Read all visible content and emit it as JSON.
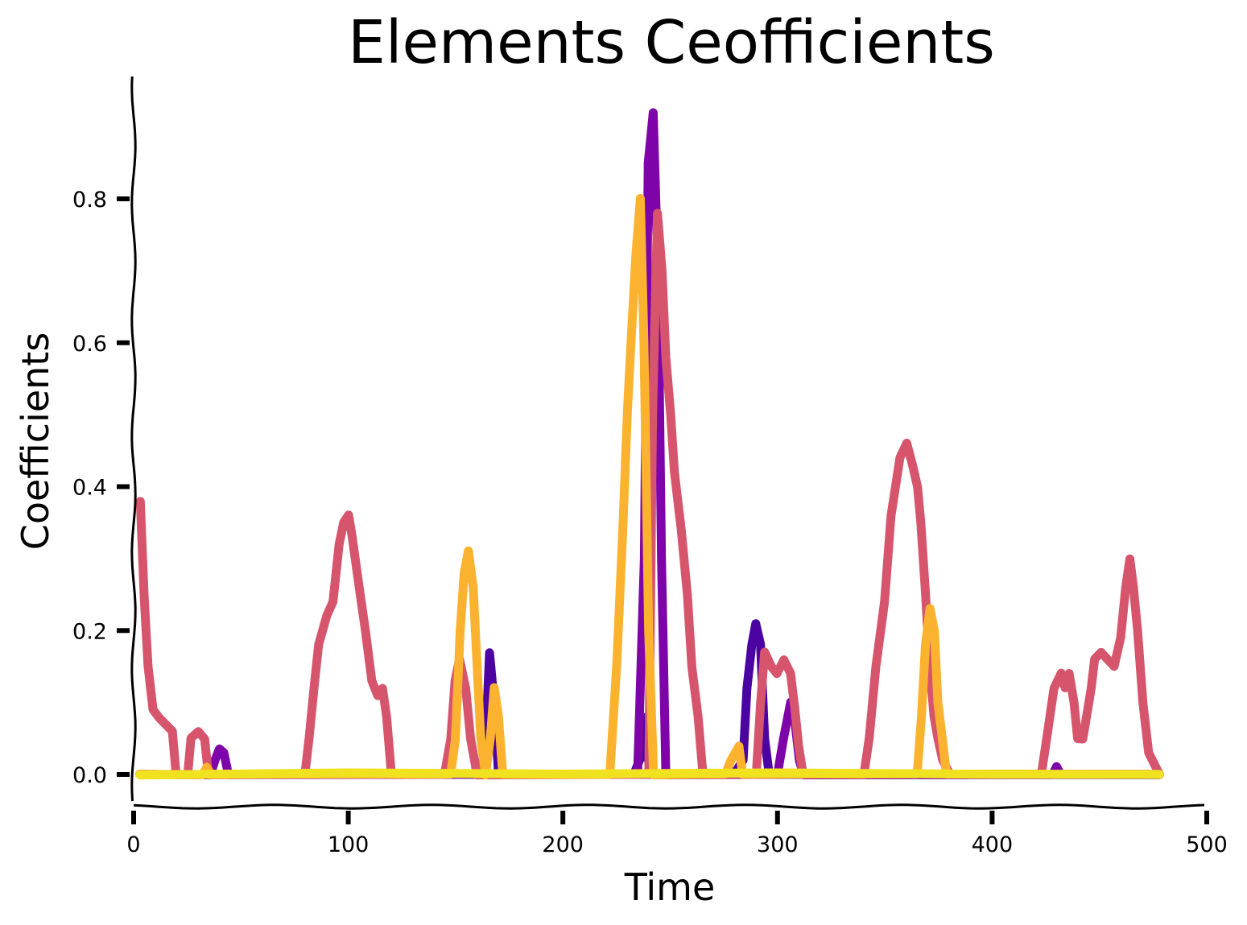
{
  "chart_data": {
    "type": "line",
    "title": "Elements Ceofficients",
    "xlabel": "Time",
    "ylabel": "Coefficients",
    "xlim": [
      0,
      500
    ],
    "ylim": [
      -0.05,
      0.96
    ],
    "xticks": [
      0,
      100,
      200,
      300,
      400,
      500
    ],
    "xtick_labels": [
      "0",
      "100",
      "200",
      "300",
      "400",
      "500"
    ],
    "yticks": [
      0.0,
      0.2,
      0.4,
      0.6,
      0.8
    ],
    "ytick_labels": [
      "0.0",
      "0.2",
      "0.4",
      "0.6",
      "0.8"
    ],
    "grid": false,
    "legend": "none",
    "style": "xkcd",
    "series": [
      {
        "color": "#4b03a1",
        "points": [
          [
            3,
            0
          ],
          [
            280,
            0
          ],
          [
            284,
            0.02
          ],
          [
            286,
            0.12
          ],
          [
            288,
            0.18
          ],
          [
            290,
            0.21
          ],
          [
            292,
            0.18
          ],
          [
            294,
            0.05
          ],
          [
            296,
            0
          ],
          [
            233,
            0
          ],
          [
            236,
            0.02
          ],
          [
            238,
            0.08
          ],
          [
            240,
            0.02
          ],
          [
            242,
            0
          ],
          [
            162,
            0
          ],
          [
            164,
            0.05
          ],
          [
            166,
            0.17
          ],
          [
            168,
            0.1
          ],
          [
            170,
            0
          ],
          [
            478,
            0
          ]
        ]
      },
      {
        "color": "#7e03a8",
        "points": [
          [
            3,
            0
          ],
          [
            36,
            0
          ],
          [
            38,
            0.02
          ],
          [
            40,
            0.035
          ],
          [
            42,
            0.03
          ],
          [
            44,
            0
          ],
          [
            235,
            0
          ],
          [
            238,
            0.3
          ],
          [
            240,
            0.85
          ],
          [
            242,
            0.92
          ],
          [
            244,
            0.7
          ],
          [
            246,
            0.3
          ],
          [
            248,
            0
          ],
          [
            300,
            0
          ],
          [
            303,
            0.05
          ],
          [
            306,
            0.1
          ],
          [
            308,
            0.08
          ],
          [
            310,
            0.02
          ],
          [
            312,
            0
          ],
          [
            428,
            0
          ],
          [
            430,
            0.01
          ],
          [
            432,
            0
          ],
          [
            478,
            0
          ]
        ]
      },
      {
        "color": "#d6556d",
        "points": [
          [
            3,
            0.38
          ],
          [
            5,
            0.25
          ],
          [
            7,
            0.15
          ],
          [
            9,
            0.09
          ],
          [
            12,
            0.08
          ],
          [
            15,
            0.07
          ],
          [
            18,
            0.06
          ],
          [
            20,
            0
          ],
          [
            25,
            0
          ],
          [
            27,
            0.05
          ],
          [
            30,
            0.06
          ],
          [
            33,
            0.05
          ],
          [
            35,
            0
          ],
          [
            80,
            0
          ],
          [
            82,
            0.05
          ],
          [
            84,
            0.12
          ],
          [
            86,
            0.18
          ],
          [
            90,
            0.22
          ],
          [
            93,
            0.24
          ],
          [
            96,
            0.32
          ],
          [
            98,
            0.35
          ],
          [
            100,
            0.36
          ],
          [
            102,
            0.33
          ],
          [
            105,
            0.26
          ],
          [
            108,
            0.2
          ],
          [
            111,
            0.13
          ],
          [
            114,
            0.11
          ],
          [
            116,
            0.12
          ],
          [
            118,
            0.08
          ],
          [
            120,
            0
          ],
          [
            145,
            0
          ],
          [
            148,
            0.05
          ],
          [
            150,
            0.13
          ],
          [
            152,
            0.16
          ],
          [
            155,
            0.12
          ],
          [
            157,
            0.05
          ],
          [
            160,
            0
          ],
          [
            240,
            0
          ],
          [
            242,
            0.5
          ],
          [
            244,
            0.78
          ],
          [
            246,
            0.7
          ],
          [
            248,
            0.58
          ],
          [
            250,
            0.5
          ],
          [
            252,
            0.42
          ],
          [
            255,
            0.34
          ],
          [
            258,
            0.25
          ],
          [
            260,
            0.15
          ],
          [
            263,
            0.08
          ],
          [
            265,
            0
          ],
          [
            290,
            0
          ],
          [
            292,
            0.1
          ],
          [
            294,
            0.17
          ],
          [
            297,
            0.15
          ],
          [
            300,
            0.14
          ],
          [
            303,
            0.16
          ],
          [
            306,
            0.14
          ],
          [
            308,
            0.09
          ],
          [
            310,
            0.04
          ],
          [
            312,
            0
          ],
          [
            340,
            0
          ],
          [
            343,
            0.05
          ],
          [
            346,
            0.15
          ],
          [
            350,
            0.24
          ],
          [
            353,
            0.36
          ],
          [
            357,
            0.44
          ],
          [
            360,
            0.46
          ],
          [
            363,
            0.43
          ],
          [
            365,
            0.4
          ],
          [
            367,
            0.35
          ],
          [
            369,
            0.25
          ],
          [
            371,
            0.15
          ],
          [
            373,
            0.08
          ],
          [
            375,
            0.05
          ],
          [
            377,
            0.02
          ],
          [
            380,
            0
          ],
          [
            423,
            0
          ],
          [
            426,
            0.06
          ],
          [
            429,
            0.12
          ],
          [
            432,
            0.14
          ],
          [
            434,
            0.12
          ],
          [
            436,
            0.14
          ],
          [
            438,
            0.1
          ],
          [
            440,
            0.05
          ],
          [
            442,
            0.05
          ],
          [
            444,
            0.08
          ],
          [
            446,
            0.12
          ],
          [
            448,
            0.16
          ],
          [
            451,
            0.17
          ],
          [
            454,
            0.16
          ],
          [
            457,
            0.15
          ],
          [
            460,
            0.19
          ],
          [
            462,
            0.26
          ],
          [
            464,
            0.3
          ],
          [
            466,
            0.26
          ],
          [
            468,
            0.2
          ],
          [
            470,
            0.1
          ],
          [
            473,
            0.03
          ],
          [
            478,
            0
          ]
        ]
      },
      {
        "color": "#fbb32f",
        "points": [
          [
            3,
            0
          ],
          [
            32,
            0
          ],
          [
            34,
            0.01
          ],
          [
            36,
            0
          ],
          [
            148,
            0
          ],
          [
            150,
            0.05
          ],
          [
            152,
            0.2
          ],
          [
            154,
            0.28
          ],
          [
            156,
            0.31
          ],
          [
            158,
            0.26
          ],
          [
            160,
            0.16
          ],
          [
            162,
            0.05
          ],
          [
            164,
            0
          ],
          [
            166,
            0.05
          ],
          [
            168,
            0.12
          ],
          [
            170,
            0.08
          ],
          [
            172,
            0
          ],
          [
            222,
            0
          ],
          [
            225,
            0.15
          ],
          [
            228,
            0.35
          ],
          [
            230,
            0.5
          ],
          [
            232,
            0.6
          ],
          [
            234,
            0.72
          ],
          [
            236,
            0.8
          ],
          [
            238,
            0.6
          ],
          [
            240,
            0.2
          ],
          [
            242,
            0
          ],
          [
            276,
            0
          ],
          [
            278,
            0.02
          ],
          [
            280,
            0.03
          ],
          [
            282,
            0.04
          ],
          [
            284,
            0
          ],
          [
            365,
            0
          ],
          [
            367,
            0.08
          ],
          [
            369,
            0.18
          ],
          [
            371,
            0.23
          ],
          [
            373,
            0.2
          ],
          [
            375,
            0.1
          ],
          [
            377,
            0.05
          ],
          [
            379,
            0
          ],
          [
            478,
            0
          ]
        ]
      },
      {
        "color": "#f0e21f",
        "points": [
          [
            3,
            0
          ],
          [
            100,
            0.002
          ],
          [
            200,
            0
          ],
          [
            300,
            0.002
          ],
          [
            400,
            0
          ],
          [
            478,
            0
          ]
        ]
      }
    ]
  }
}
